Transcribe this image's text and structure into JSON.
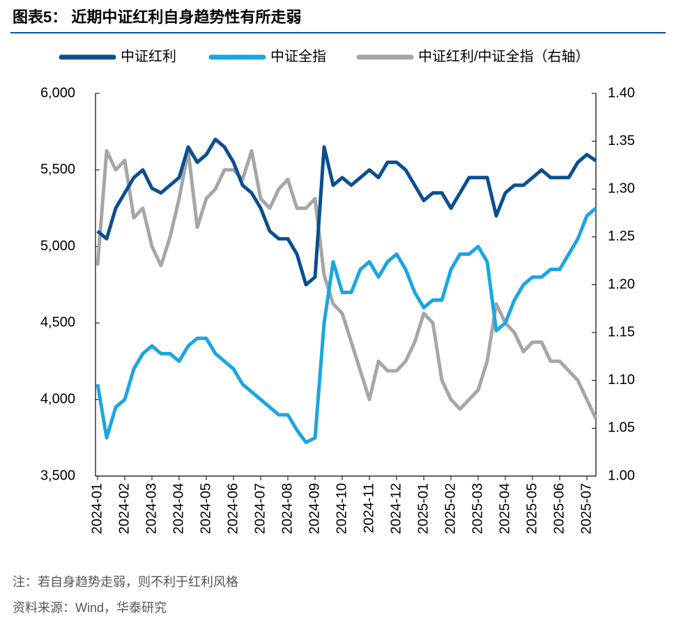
{
  "chart_data": {
    "type": "line",
    "title": "图表5：  近期中证红利自身趋势性有所走弱",
    "notes": [
      "注：若自身趋势走弱，则不利于红利风格",
      "资料来源：Wind，华泰研究"
    ],
    "categories": [
      "2024-01",
      null,
      null,
      "2024-02",
      null,
      null,
      "2024-03",
      null,
      null,
      "2024-04",
      null,
      null,
      "2024-05",
      null,
      null,
      "2024-06",
      null,
      null,
      "2024-07",
      null,
      null,
      "2024-08",
      null,
      null,
      "2024-09",
      null,
      null,
      "2024-10",
      null,
      null,
      "2024-11",
      null,
      null,
      "2024-12",
      null,
      null,
      "2025-01",
      null,
      null,
      "2025-02",
      null,
      null,
      "2025-03",
      null,
      null,
      "2025-04",
      null,
      null,
      "2025-05",
      null,
      null,
      "2025-06",
      null,
      null,
      "2025-07",
      null
    ],
    "series": [
      {
        "name": "中证红利",
        "color": "#0b4f8f",
        "values": [
          5100,
          5050,
          5250,
          5350,
          5450,
          5500,
          5380,
          5350,
          5400,
          5450,
          5650,
          5550,
          5600,
          5700,
          5650,
          5550,
          5400,
          5350,
          5250,
          5100,
          5050,
          5050,
          4950,
          4750,
          4800,
          5650,
          5400,
          5450,
          5400,
          5450,
          5500,
          5450,
          5550,
          5550,
          5500,
          5400,
          5300,
          5350,
          5350,
          5250,
          5350,
          5450,
          5450,
          5450,
          5200,
          5350,
          5400,
          5400,
          5450,
          5500,
          5450,
          5450,
          5450,
          5550,
          5600,
          5560
        ]
      },
      {
        "name": "中证全指",
        "color": "#1ba6e1",
        "values": [
          4100,
          3750,
          3950,
          4000,
          4200,
          4300,
          4350,
          4300,
          4300,
          4250,
          4350,
          4400,
          4400,
          4300,
          4250,
          4200,
          4100,
          4050,
          4000,
          3950,
          3900,
          3900,
          3800,
          3720,
          3750,
          4500,
          4900,
          4700,
          4700,
          4850,
          4900,
          4800,
          4900,
          4950,
          4850,
          4700,
          4600,
          4650,
          4650,
          4850,
          4950,
          4950,
          5000,
          4900,
          4450,
          4500,
          4650,
          4750,
          4800,
          4800,
          4850,
          4850,
          4950,
          5050,
          5200,
          5250
        ]
      },
      {
        "name": "中证红利/中证全指（右轴）",
        "color": "#a6a6a6",
        "axis": "y2",
        "values": [
          1.22,
          1.34,
          1.32,
          1.33,
          1.27,
          1.28,
          1.24,
          1.22,
          1.25,
          1.29,
          1.34,
          1.26,
          1.29,
          1.3,
          1.32,
          1.32,
          1.31,
          1.34,
          1.29,
          1.28,
          1.3,
          1.31,
          1.28,
          1.28,
          1.29,
          1.21,
          1.18,
          1.17,
          1.14,
          1.11,
          1.08,
          1.12,
          1.11,
          1.11,
          1.12,
          1.14,
          1.17,
          1.16,
          1.1,
          1.08,
          1.07,
          1.08,
          1.09,
          1.12,
          1.18,
          1.16,
          1.15,
          1.13,
          1.14,
          1.14,
          1.12,
          1.12,
          1.11,
          1.1,
          1.08,
          1.06
        ]
      }
    ],
    "ylim": [
      3500,
      6000
    ],
    "yticks": [
      {
        "value": 3500,
        "label": "3,500"
      },
      {
        "value": 4000,
        "label": "4,000"
      },
      {
        "value": 4500,
        "label": "4,500"
      },
      {
        "value": 5000,
        "label": "5,000"
      },
      {
        "value": 5500,
        "label": "5,500"
      },
      {
        "value": 6000,
        "label": "6,000"
      }
    ],
    "y2lim": [
      1.0,
      1.4
    ],
    "y2ticks": [
      {
        "value": 1.0,
        "label": "1.00"
      },
      1.05,
      {
        "value": 1.1,
        "label": "1.10"
      },
      1.15,
      {
        "value": 1.2,
        "label": "1.20"
      },
      1.25,
      {
        "value": 1.3,
        "label": "1.30"
      },
      1.35,
      {
        "value": 1.4,
        "label": "1.40"
      }
    ],
    "grid": false,
    "legend": "top"
  }
}
